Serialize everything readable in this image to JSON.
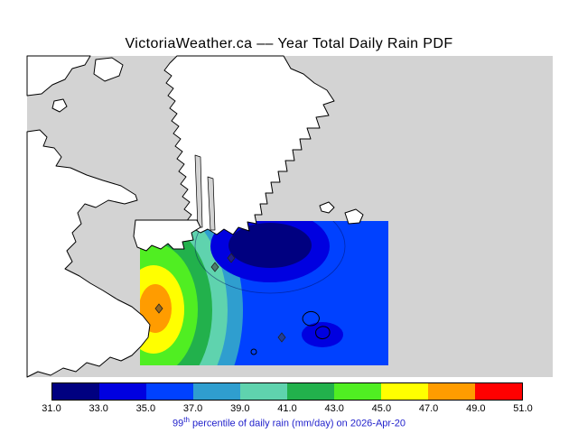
{
  "title": "VictoriaWeather.ca –– Year Total Daily Rain PDF",
  "caption": {
    "percentile": "99",
    "percentile_suffix": "th",
    "text": " percentile of daily rain (mm/day) on 2026-Apr-20",
    "color": "#2222cc"
  },
  "colorbar": {
    "tick_labels": [
      "31.0",
      "33.0",
      "35.0",
      "37.0",
      "39.0",
      "41.0",
      "43.0",
      "45.0",
      "47.0",
      "49.0",
      "51.0"
    ],
    "colors": [
      "#000080",
      "#0000e0",
      "#0041ff",
      "#2f9ecf",
      "#5fd3ae",
      "#22b14c",
      "#50ee22",
      "#ffff00",
      "#ff9c00",
      "#ff0000"
    ]
  },
  "map": {
    "sea_color": "#d3d3d3",
    "land_color": "#ffffff",
    "coast_color": "#000000",
    "marker_color": "#3c3c3c"
  },
  "chart_data": {
    "type": "heatmap",
    "title": "VictoriaWeather.ca –– Year Total Daily Rain PDF",
    "quantity": "99th percentile of daily rain",
    "units": "mm/day",
    "valid_date": "2026-Apr-20",
    "legend_position": "bottom",
    "colorbar_ticks": [
      31.0,
      33.0,
      35.0,
      37.0,
      39.0,
      41.0,
      43.0,
      45.0,
      47.0,
      49.0,
      51.0
    ],
    "contour_levels": [
      31,
      33,
      35,
      37,
      39,
      41,
      43,
      45,
      47,
      49,
      51
    ],
    "palette": [
      "#000080",
      "#0000e0",
      "#0041ff",
      "#2f9ecf",
      "#5fd3ae",
      "#22b14c",
      "#50ee22",
      "#ffff00",
      "#ff9c00",
      "#ff0000"
    ],
    "field": {
      "min_band_mm_per_day": [
        31,
        33
      ],
      "min_location": "dark-blue closed low in the north-central part of the shaded region",
      "max_band_mm_per_day": [
        47,
        49
      ],
      "max_location": "orange closed high at the western edge of the shaded region",
      "dominant_band_mm_per_day": [
        35,
        37
      ],
      "pattern": "values decrease eastward from an orange/yellow maximum in the west through green and cyan bands into a broad blue field with a navy minimum in the northeast and a secondary darker-blue spot in the southeast"
    }
  }
}
